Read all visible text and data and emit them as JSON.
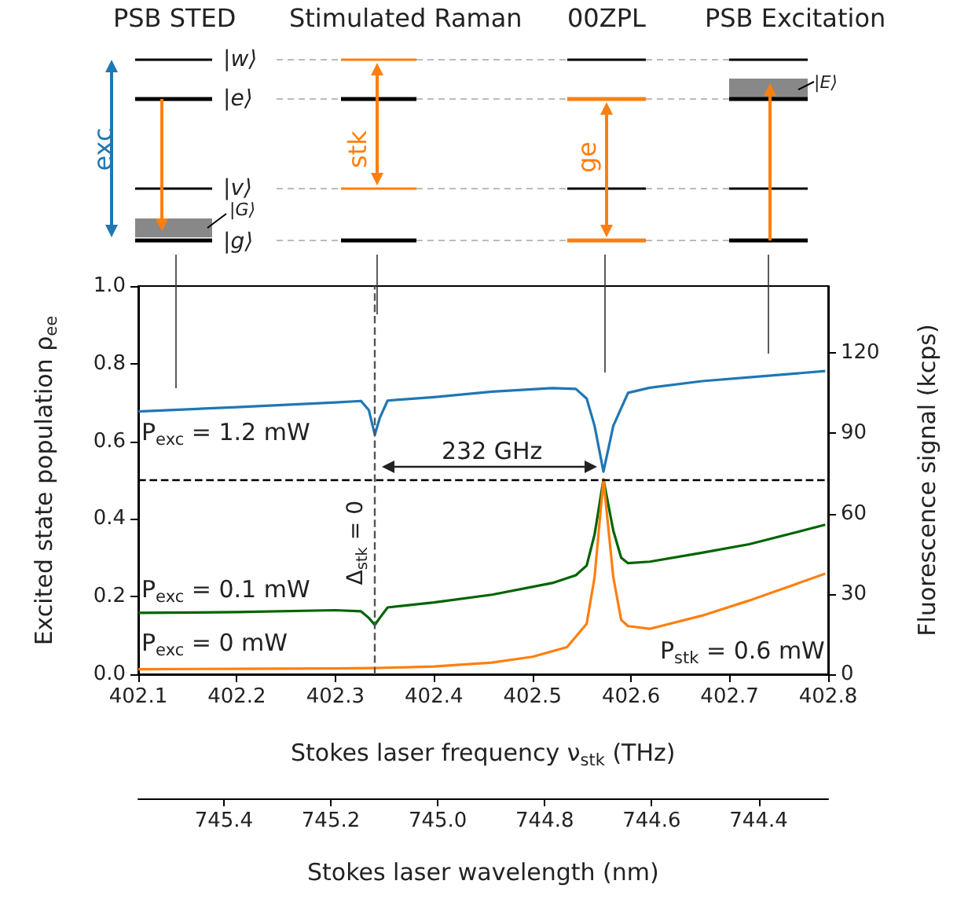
{
  "chart_data": {
    "type": "line",
    "xlabel": "Stokes laser frequency ν$_{stk}$ (THz)",
    "ylabel": "Excited state population ρ$_{ee}$",
    "y2label": "Fluorescence signal (kcps)",
    "x2label": "Stokes laser wavelength (nm)",
    "xlim": [
      402.1,
      402.8
    ],
    "xticks": [
      402.1,
      402.2,
      402.3,
      402.4,
      402.5,
      402.6,
      402.7,
      402.8
    ],
    "ylim": [
      0,
      1
    ],
    "yticks": [
      {
        "value": 0,
        "label": "0.0"
      },
      0.2,
      0.4,
      0.6,
      0.8,
      {
        "value": 1,
        "label": "1.0"
      }
    ],
    "y2lim": [
      0,
      145
    ],
    "y2ticks": [
      0,
      30,
      60,
      90,
      120
    ],
    "x2lim": [
      745.56,
      744.27
    ],
    "x2ticks": [
      745.4,
      745.2,
      {
        "value": 745,
        "label": "745.0"
      },
      744.8,
      744.6,
      744.4
    ],
    "grid": false,
    "marker": "none",
    "line_style": "solid",
    "series": [
      {
        "color": "#1f77b4",
        "x": [
          402.1,
          402.2,
          402.3,
          402.326,
          402.334,
          402.34,
          402.345,
          402.353,
          402.4,
          402.459,
          402.52,
          402.544,
          402.555,
          402.563,
          402.572,
          402.582,
          402.597,
          402.619,
          402.672,
          402.72,
          402.797
        ],
        "values": [
          0.677,
          0.688,
          0.7,
          0.704,
          0.68,
          0.617,
          0.66,
          0.705,
          0.714,
          0.728,
          0.737,
          0.735,
          0.71,
          0.64,
          0.522,
          0.64,
          0.725,
          0.738,
          0.755,
          0.765,
          0.781
        ]
      },
      {
        "color": "#006400",
        "x": [
          402.1,
          402.2,
          402.3,
          402.326,
          402.334,
          402.34,
          402.345,
          402.353,
          402.4,
          402.459,
          402.52,
          402.544,
          402.555,
          402.563,
          402.572,
          402.582,
          402.59,
          402.597,
          402.619,
          402.672,
          402.72,
          402.797
        ],
        "values": [
          0.158,
          0.16,
          0.165,
          0.162,
          0.145,
          0.127,
          0.145,
          0.172,
          0.185,
          0.205,
          0.235,
          0.255,
          0.28,
          0.36,
          0.502,
          0.37,
          0.3,
          0.286,
          0.29,
          0.313,
          0.335,
          0.385
        ]
      },
      {
        "color": "#ff7f0e",
        "x": [
          402.1,
          402.2,
          402.3,
          402.34,
          402.4,
          402.459,
          402.5,
          402.535,
          402.555,
          402.563,
          402.572,
          402.582,
          402.59,
          402.597,
          402.619,
          402.672,
          402.72,
          402.797
        ],
        "values": [
          0.013,
          0.014,
          0.015,
          0.016,
          0.02,
          0.03,
          0.045,
          0.07,
          0.13,
          0.25,
          0.502,
          0.25,
          0.14,
          0.124,
          0.117,
          0.151,
          0.19,
          0.259
        ]
      }
    ],
    "ref_lines": [
      {
        "axis": "y",
        "value": 0.5,
        "color": "#000000",
        "line_style": "dashed"
      },
      {
        "axis": "x",
        "value": 402.34,
        "color": "#555555",
        "line_style": "dashed"
      }
    ],
    "annotations": [
      "PSB STED",
      "Stimulated Raman",
      "00ZPL",
      "PSB Excitation",
      "|w⟩",
      "|e⟩",
      "|v⟩",
      "|G⟩",
      "|g⟩",
      "|E⟩",
      "exc",
      "stk",
      "ge",
      "P$_{exc}$ = 1.2 mW",
      "P$_{exc}$ = 0.1 mW",
      "P$_{exc}$ = 0 mW",
      "P$_{stk}$ = 0.6 mW",
      "232 GHz",
      "Δ$_{stk}$ = 0"
    ]
  }
}
